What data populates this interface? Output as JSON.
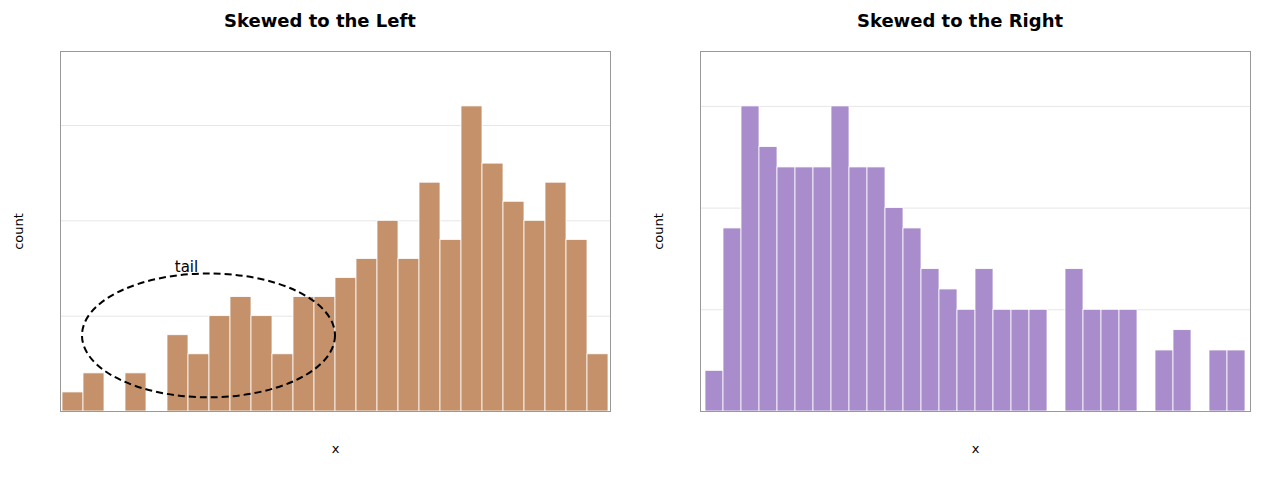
{
  "chart_data": [
    {
      "type": "bar",
      "title": "Skewed to the Left",
      "x_label": "x",
      "y_label": "count",
      "categories": [
        null,
        null,
        null,
        null,
        null,
        null,
        null,
        null,
        null,
        null,
        null,
        null,
        null,
        null,
        null,
        null,
        null,
        null,
        null,
        null,
        null,
        null,
        null,
        null,
        null,
        null
      ],
      "values": [
        1,
        2,
        0,
        2,
        0,
        4,
        3,
        5,
        6,
        5,
        3,
        6,
        6,
        7,
        8,
        10,
        8,
        12,
        9,
        16,
        13,
        11,
        10,
        12,
        9,
        3
      ],
      "color": "#C4916A",
      "ylim": [
        0,
        18.88
      ],
      "yticks": [
        0,
        5,
        10,
        15
      ],
      "grid": true,
      "tick_labels": false,
      "annotation": "tail"
    },
    {
      "type": "bar",
      "title": "Skewed to the Right",
      "x_label": "x",
      "y_label": "count",
      "categories": [
        null,
        null,
        null,
        null,
        null,
        null,
        null,
        null,
        null,
        null,
        null,
        null,
        null,
        null,
        null,
        null,
        null,
        null,
        null,
        null,
        null,
        null,
        null,
        null,
        null,
        null,
        null,
        null,
        null,
        null
      ],
      "values": [
        2,
        9,
        15,
        13,
        12,
        12,
        12,
        15,
        12,
        12,
        10,
        9,
        7,
        6,
        5,
        7,
        5,
        5,
        5,
        0,
        7,
        5,
        5,
        5,
        0,
        3,
        4,
        0,
        3,
        3
      ],
      "color": "#A98CCC",
      "ylim": [
        0,
        17.7
      ],
      "yticks": [
        0,
        5,
        10,
        15
      ],
      "grid": true,
      "tick_labels": false
    }
  ]
}
